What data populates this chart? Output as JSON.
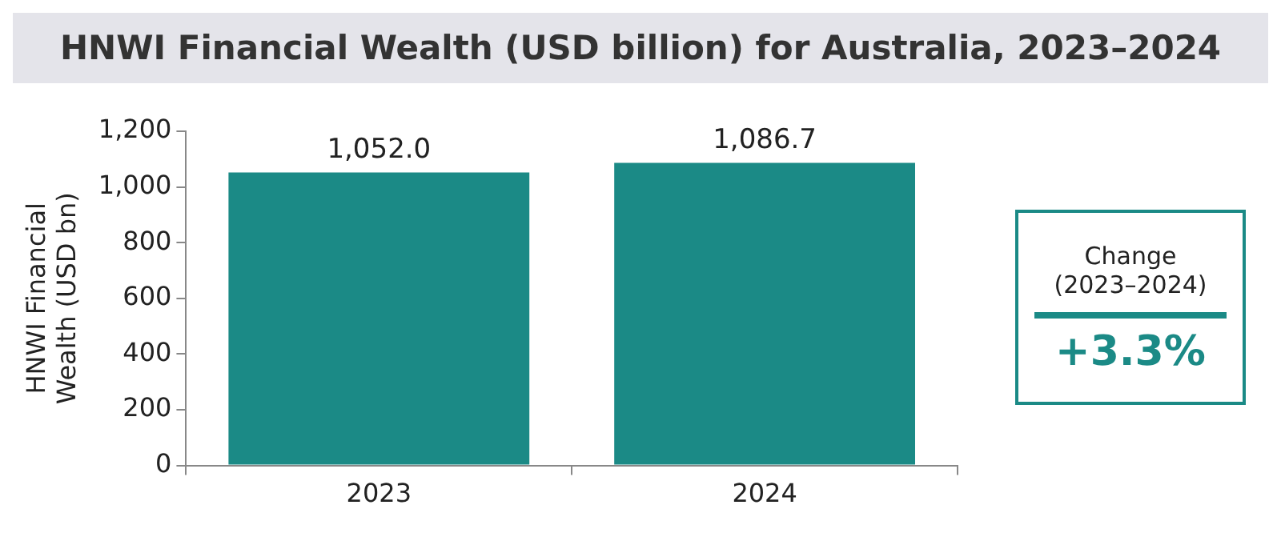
{
  "chart_data": [
    {
      "type": "bar",
      "title": "HNWI Financial Wealth (USD billion) for Australia, 2023–2024",
      "ylabel": "HNWI Financial Wealth (USD bn)",
      "categories": [
        "2023",
        "2024"
      ],
      "values": [
        1052.0,
        1086.7
      ],
      "value_labels": [
        "1,052.0",
        "1,086.7"
      ],
      "color": "#1b8a86",
      "ylim": [
        0,
        1200
      ],
      "yticks": [
        0,
        200,
        400,
        600,
        800,
        {
          "value": 1000,
          "label": "1,000"
        },
        {
          "value": 1200,
          "label": "1,200"
        }
      ],
      "grid": false,
      "legend": false
    },
    {
      "type": "other",
      "title": "Change",
      "subtitle": "(2023–2024)",
      "annotations": [
        "+3.3%"
      ]
    }
  ]
}
